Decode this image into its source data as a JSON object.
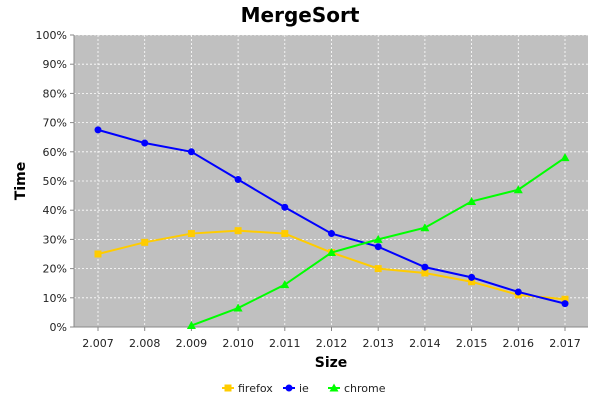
{
  "chart_data": {
    "type": "line",
    "title": "MergeSort",
    "xlabel": "Size",
    "ylabel": "Time",
    "ylim": [
      0,
      100
    ],
    "yticks": [
      "0%",
      "10%",
      "20%",
      "30%",
      "40%",
      "50%",
      "60%",
      "70%",
      "80%",
      "90%",
      "100%"
    ],
    "categories": [
      "2.007",
      "2.008",
      "2.009",
      "2.010",
      "2.011",
      "2.012",
      "2.013",
      "2.014",
      "2.015",
      "2.016",
      "2.017"
    ],
    "grid": true,
    "legend_position": "bottom-center",
    "series": [
      {
        "name": "firefox",
        "color": "#FFCC00",
        "marker": "square",
        "values": [
          25,
          29,
          32,
          33,
          32,
          25.5,
          20,
          18.5,
          15.5,
          11,
          9.5
        ]
      },
      {
        "name": "ie",
        "color": "#0000FF",
        "marker": "circle",
        "values": [
          67.5,
          63,
          60,
          50.5,
          41,
          32,
          27.5,
          20.5,
          17,
          12,
          8
        ]
      },
      {
        "name": "chrome",
        "color": "#00FF00",
        "marker": "triangle",
        "values": [
          null,
          null,
          0.5,
          6.5,
          14.5,
          25.5,
          30,
          34,
          43,
          47,
          58
        ]
      }
    ]
  }
}
